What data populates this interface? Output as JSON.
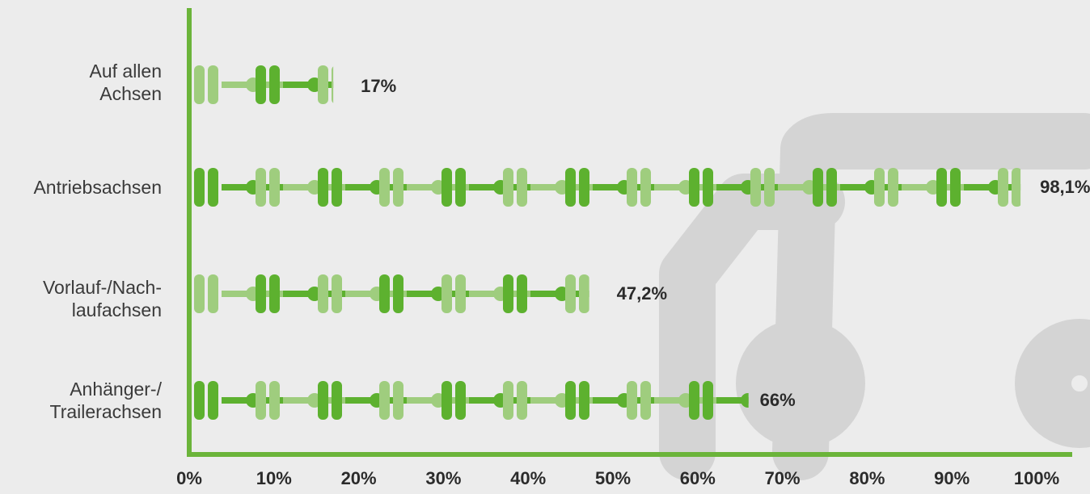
{
  "chart_data": {
    "type": "bar",
    "categories": [
      "Auf allen\nAchsen",
      "Antriebsachsen",
      "Vorlauf-/Nach-\nlaufachsen",
      "Anhänger-/\nTrailerachsen"
    ],
    "values": [
      17,
      98.1,
      47.2,
      66
    ],
    "value_labels": [
      "17%",
      "98,1%",
      "47,2%",
      "66%"
    ],
    "x_ticks": [
      "0%",
      "10%",
      "20%",
      "30%",
      "40%",
      "50%",
      "60%",
      "70%",
      "80%",
      "90%",
      "100%"
    ],
    "xlim": [
      0,
      100
    ],
    "grid": false,
    "orientation": "horizontal",
    "colors": {
      "dark": "#5db12f",
      "light": "#9fcd7e",
      "axis": "#6bb43a",
      "truck": "#d4d4d4"
    }
  }
}
